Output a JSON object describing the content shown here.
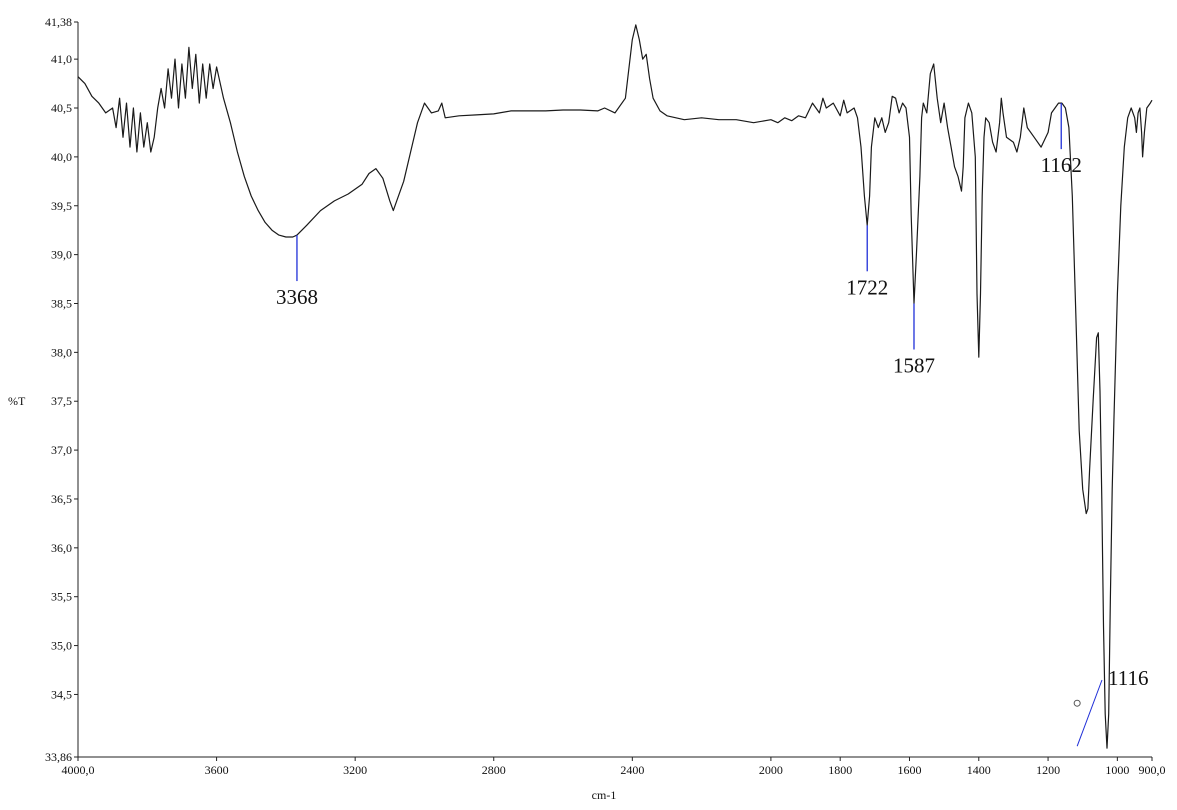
{
  "chart_data": {
    "type": "line",
    "title": "",
    "xlabel": "cm-1",
    "ylabel": "%T",
    "xlim": [
      4000,
      900
    ],
    "ylim": [
      33.86,
      41.38
    ],
    "x_ticks": [
      "4000,0",
      "3600",
      "3200",
      "2800",
      "2400",
      "2000",
      "1800",
      "1600",
      "1400",
      "1200",
      "1000",
      "900,0"
    ],
    "y_ticks": [
      "41,38",
      "41,0",
      "40,5",
      "40,0",
      "39,5",
      "39,0",
      "38,5",
      "38,0",
      "37,5",
      "37,0",
      "36,5",
      "36,0",
      "35,5",
      "35,0",
      "34,5",
      "33,86"
    ],
    "line_color": "#1a1a1a",
    "annotation_color": "#1f2fd8",
    "series": [
      {
        "points": [
          [
            4000,
            40.82
          ],
          [
            3980,
            40.75
          ],
          [
            3960,
            40.62
          ],
          [
            3940,
            40.55
          ],
          [
            3920,
            40.45
          ],
          [
            3900,
            40.5
          ],
          [
            3890,
            40.3
          ],
          [
            3880,
            40.6
          ],
          [
            3870,
            40.2
          ],
          [
            3860,
            40.55
          ],
          [
            3850,
            40.1
          ],
          [
            3840,
            40.5
          ],
          [
            3830,
            40.05
          ],
          [
            3820,
            40.45
          ],
          [
            3810,
            40.1
          ],
          [
            3800,
            40.35
          ],
          [
            3790,
            40.05
          ],
          [
            3780,
            40.2
          ],
          [
            3770,
            40.5
          ],
          [
            3760,
            40.7
          ],
          [
            3750,
            40.5
          ],
          [
            3740,
            40.9
          ],
          [
            3730,
            40.6
          ],
          [
            3720,
            41.0
          ],
          [
            3710,
            40.5
          ],
          [
            3700,
            40.95
          ],
          [
            3690,
            40.6
          ],
          [
            3680,
            41.12
          ],
          [
            3670,
            40.7
          ],
          [
            3660,
            41.05
          ],
          [
            3650,
            40.55
          ],
          [
            3640,
            40.95
          ],
          [
            3630,
            40.6
          ],
          [
            3620,
            40.95
          ],
          [
            3610,
            40.7
          ],
          [
            3600,
            40.92
          ],
          [
            3580,
            40.6
          ],
          [
            3560,
            40.35
          ],
          [
            3540,
            40.05
          ],
          [
            3520,
            39.8
          ],
          [
            3500,
            39.6
          ],
          [
            3480,
            39.45
          ],
          [
            3460,
            39.33
          ],
          [
            3440,
            39.25
          ],
          [
            3420,
            39.2
          ],
          [
            3400,
            39.18
          ],
          [
            3380,
            39.18
          ],
          [
            3368,
            39.2
          ],
          [
            3340,
            39.3
          ],
          [
            3300,
            39.45
          ],
          [
            3260,
            39.55
          ],
          [
            3220,
            39.62
          ],
          [
            3180,
            39.72
          ],
          [
            3160,
            39.83
          ],
          [
            3140,
            39.88
          ],
          [
            3120,
            39.78
          ],
          [
            3100,
            39.55
          ],
          [
            3090,
            39.45
          ],
          [
            3080,
            39.55
          ],
          [
            3060,
            39.75
          ],
          [
            3040,
            40.05
          ],
          [
            3020,
            40.35
          ],
          [
            3000,
            40.55
          ],
          [
            2980,
            40.45
          ],
          [
            2960,
            40.47
          ],
          [
            2950,
            40.55
          ],
          [
            2940,
            40.4
          ],
          [
            2900,
            40.42
          ],
          [
            2850,
            40.43
          ],
          [
            2800,
            40.44
          ],
          [
            2750,
            40.47
          ],
          [
            2700,
            40.47
          ],
          [
            2650,
            40.47
          ],
          [
            2600,
            40.48
          ],
          [
            2550,
            40.48
          ],
          [
            2500,
            40.47
          ],
          [
            2480,
            40.5
          ],
          [
            2450,
            40.45
          ],
          [
            2420,
            40.6
          ],
          [
            2400,
            41.2
          ],
          [
            2390,
            41.35
          ],
          [
            2380,
            41.2
          ],
          [
            2370,
            41.0
          ],
          [
            2360,
            41.05
          ],
          [
            2350,
            40.8
          ],
          [
            2340,
            40.6
          ],
          [
            2320,
            40.47
          ],
          [
            2300,
            40.42
          ],
          [
            2250,
            40.38
          ],
          [
            2200,
            40.4
          ],
          [
            2150,
            40.38
          ],
          [
            2100,
            40.38
          ],
          [
            2050,
            40.35
          ],
          [
            2000,
            40.38
          ],
          [
            1980,
            40.35
          ],
          [
            1960,
            40.4
          ],
          [
            1940,
            40.37
          ],
          [
            1920,
            40.42
          ],
          [
            1900,
            40.4
          ],
          [
            1880,
            40.55
          ],
          [
            1860,
            40.45
          ],
          [
            1850,
            40.6
          ],
          [
            1840,
            40.5
          ],
          [
            1820,
            40.55
          ],
          [
            1800,
            40.42
          ],
          [
            1790,
            40.58
          ],
          [
            1780,
            40.45
          ],
          [
            1760,
            40.5
          ],
          [
            1750,
            40.4
          ],
          [
            1740,
            40.1
          ],
          [
            1730,
            39.6
          ],
          [
            1722,
            39.3
          ],
          [
            1715,
            39.6
          ],
          [
            1710,
            40.1
          ],
          [
            1700,
            40.4
          ],
          [
            1690,
            40.3
          ],
          [
            1680,
            40.4
          ],
          [
            1670,
            40.25
          ],
          [
            1660,
            40.35
          ],
          [
            1650,
            40.62
          ],
          [
            1640,
            40.6
          ],
          [
            1630,
            40.45
          ],
          [
            1620,
            40.55
          ],
          [
            1610,
            40.5
          ],
          [
            1600,
            40.2
          ],
          [
            1595,
            39.4
          ],
          [
            1587,
            38.5
          ],
          [
            1580,
            39.0
          ],
          [
            1570,
            39.8
          ],
          [
            1565,
            40.4
          ],
          [
            1560,
            40.55
          ],
          [
            1550,
            40.45
          ],
          [
            1540,
            40.85
          ],
          [
            1530,
            40.95
          ],
          [
            1520,
            40.6
          ],
          [
            1510,
            40.35
          ],
          [
            1500,
            40.55
          ],
          [
            1490,
            40.3
          ],
          [
            1480,
            40.1
          ],
          [
            1470,
            39.9
          ],
          [
            1460,
            39.8
          ],
          [
            1450,
            39.65
          ],
          [
            1445,
            39.9
          ],
          [
            1440,
            40.4
          ],
          [
            1430,
            40.55
          ],
          [
            1420,
            40.45
          ],
          [
            1410,
            40.0
          ],
          [
            1405,
            38.6
          ],
          [
            1400,
            37.95
          ],
          [
            1395,
            38.6
          ],
          [
            1390,
            39.6
          ],
          [
            1385,
            40.2
          ],
          [
            1380,
            40.4
          ],
          [
            1370,
            40.35
          ],
          [
            1360,
            40.15
          ],
          [
            1350,
            40.05
          ],
          [
            1340,
            40.35
          ],
          [
            1335,
            40.6
          ],
          [
            1330,
            40.45
          ],
          [
            1320,
            40.2
          ],
          [
            1300,
            40.15
          ],
          [
            1290,
            40.05
          ],
          [
            1280,
            40.2
          ],
          [
            1270,
            40.5
          ],
          [
            1260,
            40.3
          ],
          [
            1240,
            40.2
          ],
          [
            1220,
            40.1
          ],
          [
            1200,
            40.25
          ],
          [
            1190,
            40.45
          ],
          [
            1180,
            40.5
          ],
          [
            1170,
            40.55
          ],
          [
            1160,
            40.55
          ],
          [
            1150,
            40.5
          ],
          [
            1140,
            40.3
          ],
          [
            1130,
            39.6
          ],
          [
            1120,
            38.4
          ],
          [
            1110,
            37.2
          ],
          [
            1100,
            36.6
          ],
          [
            1090,
            36.35
          ],
          [
            1085,
            36.4
          ],
          [
            1080,
            36.8
          ],
          [
            1070,
            37.5
          ],
          [
            1060,
            38.15
          ],
          [
            1055,
            38.2
          ],
          [
            1050,
            37.6
          ],
          [
            1045,
            36.5
          ],
          [
            1040,
            35.2
          ],
          [
            1035,
            34.3
          ],
          [
            1030,
            33.95
          ],
          [
            1025,
            34.3
          ],
          [
            1020,
            35.5
          ],
          [
            1015,
            36.6
          ],
          [
            1010,
            37.3
          ],
          [
            1000,
            38.6
          ],
          [
            990,
            39.5
          ],
          [
            980,
            40.1
          ],
          [
            970,
            40.4
          ],
          [
            960,
            40.5
          ],
          [
            950,
            40.4
          ],
          [
            945,
            40.25
          ],
          [
            940,
            40.45
          ],
          [
            935,
            40.5
          ],
          [
            930,
            40.25
          ],
          [
            927,
            40.0
          ],
          [
            922,
            40.25
          ],
          [
            915,
            40.5
          ],
          [
            905,
            40.55
          ],
          [
            900,
            40.58
          ]
        ]
      }
    ],
    "annotations": [
      {
        "label": "3368",
        "x": 3368
      },
      {
        "label": "1722",
        "x": 1722
      },
      {
        "label": "1587",
        "x": 1587
      },
      {
        "label": "1162",
        "x": 1162
      },
      {
        "label": "1116",
        "x": 1116
      }
    ]
  }
}
